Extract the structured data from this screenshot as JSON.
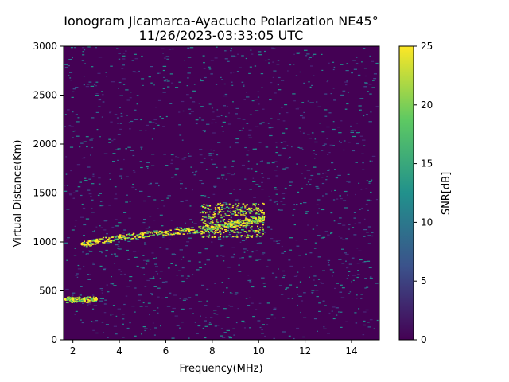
{
  "chart_data": {
    "type": "heatmap",
    "title_line1": "Ionogram Jicamarca-Ayacucho Polarization NE45°",
    "title_line2": "11/26/2023-03:33:05 UTC",
    "xlabel": "Frequency(MHz)",
    "ylabel": "Virtual Distance(Km)",
    "colorbar_label": "SNR[dB]",
    "xlim": [
      1.6,
      15.2
    ],
    "ylim": [
      0,
      3000
    ],
    "x_ticks": [
      "2",
      "4",
      "6",
      "8",
      "10",
      "12",
      "14"
    ],
    "y_ticks": [
      "0",
      "500",
      "1000",
      "1500",
      "2000",
      "2500",
      "3000"
    ],
    "colorbar_range": [
      0,
      25
    ],
    "colorbar_ticks": [
      "0",
      "5",
      "10",
      "15",
      "20",
      "25"
    ],
    "colormap": "viridis",
    "grid": false,
    "traces": [
      {
        "name": "",
        "x": [
          2.4,
          3.0,
          4.0,
          5.0,
          6.0,
          7.0,
          8.0,
          8.8,
          9.6,
          10.2
        ],
        "y": [
          980,
          1010,
          1050,
          1080,
          1100,
          1120,
          1150,
          1180,
          1220,
          1250
        ]
      },
      {
        "name": "",
        "x": [
          1.7,
          2.0,
          2.5,
          3.0
        ],
        "y": [
          415,
          415,
          415,
          415
        ]
      }
    ],
    "spread_region": {
      "x": [
        7.5,
        10.2
      ],
      "y": [
        1050,
        1400
      ]
    }
  },
  "colors": {
    "background": "#ffffff",
    "plot_background": "#440154",
    "viridis_stops": [
      "#440154",
      "#3b528b",
      "#21918c",
      "#5ec962",
      "#fde725"
    ]
  }
}
